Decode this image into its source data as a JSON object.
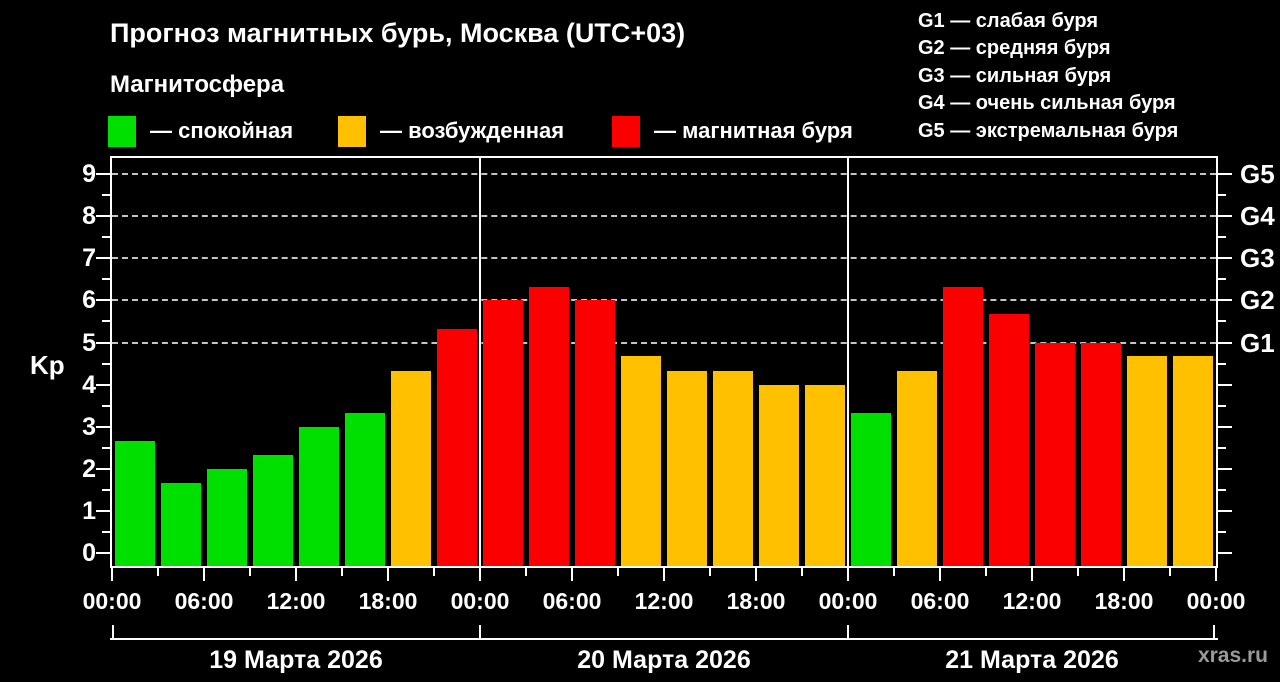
{
  "title": "Прогноз магнитных бурь, Москва (UTC+03)",
  "subtitle": "Магнитосфера",
  "status_legend": {
    "items": [
      {
        "name": "quiet",
        "color": "#00e000",
        "label": "— спокойная"
      },
      {
        "name": "excited",
        "color": "#ffc000",
        "label": "— возбужденная"
      },
      {
        "name": "storm",
        "color": "#fa0000",
        "label": "— магнитная буря"
      }
    ]
  },
  "g_legend": {
    "items": [
      "G1 — слабая буря",
      "G2 — средняя буря",
      "G3 — сильная буря",
      "G4 — очень сильная буря",
      "G5 — экстремальная буря"
    ]
  },
  "watermark": "xras.ru",
  "chart_data": {
    "type": "bar",
    "title": "Прогноз магнитных бурь, Москва (UTC+03)",
    "ylabel": "Kp",
    "ylim": [
      0,
      9
    ],
    "y_ticks": [
      0,
      1,
      2,
      3,
      4,
      5,
      6,
      7,
      8,
      9
    ],
    "grid_levels": [
      5,
      6,
      7,
      8,
      9
    ],
    "grid_on": true,
    "right_axis": [
      {
        "value": 5,
        "label": "G1"
      },
      {
        "value": 6,
        "label": "G2"
      },
      {
        "value": 7,
        "label": "G3"
      },
      {
        "value": 8,
        "label": "G4"
      },
      {
        "value": 9,
        "label": "G5"
      }
    ],
    "x_tick_labels": [
      "00:00",
      "06:00",
      "12:00",
      "18:00",
      "00:00",
      "06:00",
      "12:00",
      "18:00",
      "00:00",
      "06:00",
      "12:00",
      "18:00",
      "00:00"
    ],
    "interval_hours": 3,
    "colors": {
      "quiet": "#00e000",
      "excited": "#ffc000",
      "storm": "#fa0000"
    },
    "color_thresholds": {
      "excited_from": 4,
      "storm_from": 5
    },
    "days": [
      {
        "date": "19 Марта 2026",
        "values": [
          2.67,
          1.67,
          2.0,
          2.33,
          3.0,
          3.33,
          4.33,
          5.33
        ]
      },
      {
        "date": "20 Марта 2026",
        "values": [
          6.0,
          6.33,
          6.0,
          4.67,
          4.33,
          4.33,
          4.0,
          4.0
        ]
      },
      {
        "date": "21 Марта 2026",
        "values": [
          3.33,
          4.33,
          6.33,
          5.67,
          5.0,
          5.0,
          4.67,
          4.67
        ]
      }
    ]
  }
}
